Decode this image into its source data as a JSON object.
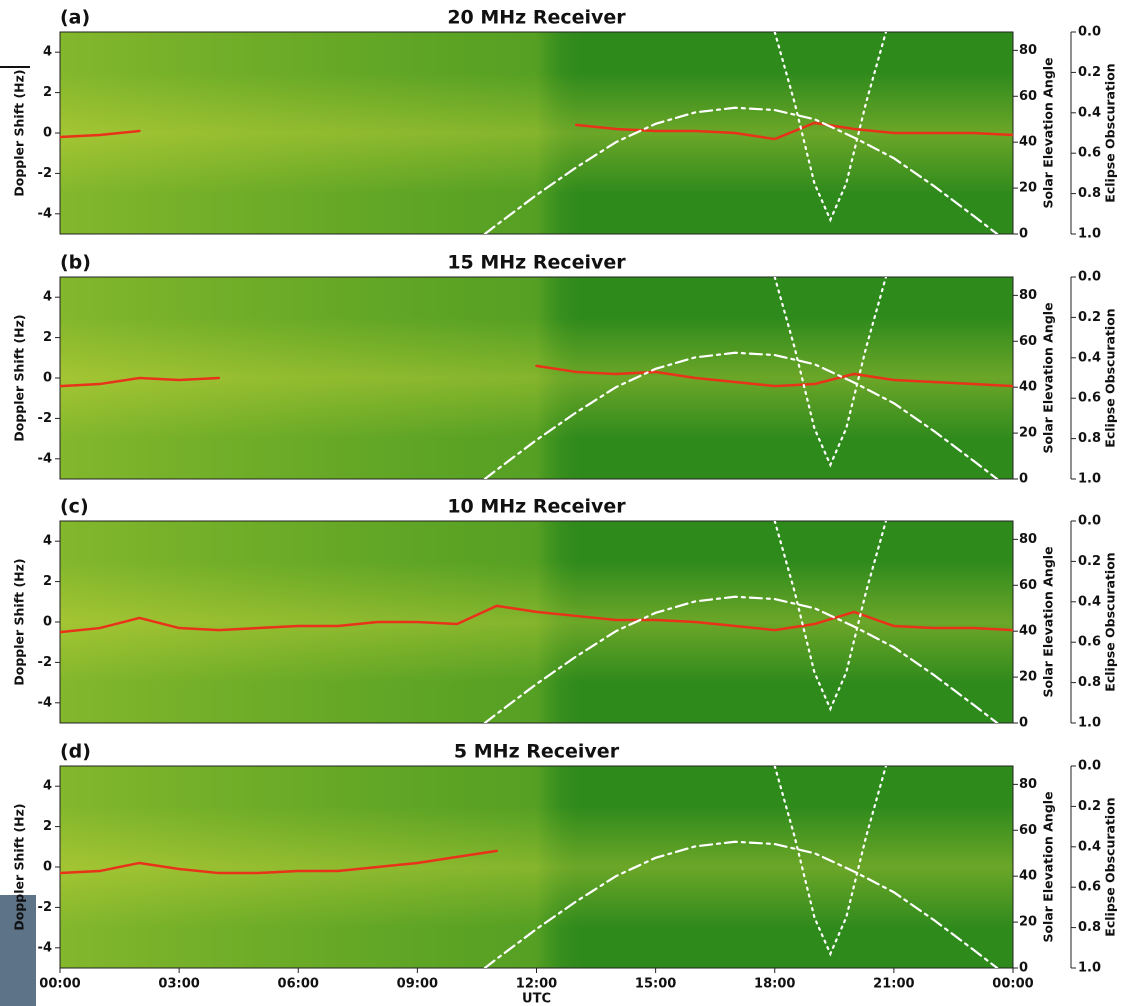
{
  "chart_data": [
    {
      "type": "line",
      "label": "(a)",
      "title": "20 MHz Receiver",
      "ylabel": "Doppler Shift (Hz)",
      "y2label": "Solar Elevation Angle",
      "y3label": "Eclipse Obscuration",
      "xlim": [
        0,
        24
      ],
      "ylim": [
        -5,
        5
      ],
      "yticks": [
        -4,
        -2,
        0,
        2,
        4
      ],
      "y2lim": [
        0,
        88
      ],
      "y2ticks": [
        0,
        20,
        40,
        60,
        80
      ],
      "y3lim": [
        0,
        1
      ],
      "y3_inverted": true,
      "y3ticks": [
        {
          "value": 0,
          "label": "0.0"
        },
        {
          "value": 0.2,
          "label": "0.2"
        },
        {
          "value": 0.4,
          "label": "0.4"
        },
        {
          "value": 0.6,
          "label": "0.6"
        },
        {
          "value": 0.8,
          "label": "0.8"
        },
        {
          "value": 1,
          "label": "1.0"
        }
      ],
      "series": [
        {
          "color": "#e8321a",
          "style": "solid",
          "x": [
            0,
            1,
            2,
            3,
            4,
            5,
            6,
            7,
            8,
            9,
            10,
            11,
            12,
            13,
            14,
            15,
            16,
            17,
            18,
            19,
            20,
            21,
            22,
            23,
            24
          ],
          "values": [
            -0.2,
            -0.1,
            0.1,
            null,
            null,
            null,
            null,
            null,
            null,
            null,
            null,
            null,
            null,
            0.4,
            0.2,
            0.1,
            0.1,
            0.0,
            -0.3,
            0.5,
            0.2,
            0.0,
            0.0,
            0.0,
            -0.1
          ]
        },
        {
          "axis": "y2",
          "color": "#ffffff",
          "style": "dashdot",
          "x": [
            10.7,
            11,
            12,
            13,
            14,
            15,
            16,
            17,
            18,
            19,
            20,
            21,
            22,
            23,
            23.6
          ],
          "values": [
            0,
            4,
            17,
            29,
            40,
            48,
            53,
            55,
            54,
            50,
            42,
            33,
            21,
            8,
            0
          ]
        },
        {
          "axis": "y3",
          "color": "#ffffff",
          "style": "dotted",
          "x": [
            18.0,
            18.5,
            19.0,
            19.4,
            19.8,
            20.3,
            20.8
          ],
          "values": [
            0,
            0.35,
            0.75,
            0.93,
            0.75,
            0.35,
            0
          ]
        }
      ]
    },
    {
      "type": "line",
      "label": "(b)",
      "title": "15 MHz Receiver",
      "ylabel": "Doppler Shift (Hz)",
      "y2label": "Solar Elevation Angle",
      "y3label": "Eclipse Obscuration",
      "xlim": [
        0,
        24
      ],
      "ylim": [
        -5,
        5
      ],
      "yticks": [
        -4,
        -2,
        0,
        2,
        4
      ],
      "y2lim": [
        0,
        88
      ],
      "y2ticks": [
        0,
        20,
        40,
        60,
        80
      ],
      "y3lim": [
        0,
        1
      ],
      "y3_inverted": true,
      "y3ticks": [
        {
          "value": 0,
          "label": "0.0"
        },
        {
          "value": 0.2,
          "label": "0.2"
        },
        {
          "value": 0.4,
          "label": "0.4"
        },
        {
          "value": 0.6,
          "label": "0.6"
        },
        {
          "value": 0.8,
          "label": "0.8"
        },
        {
          "value": 1,
          "label": "1.0"
        }
      ],
      "series": [
        {
          "color": "#e8321a",
          "style": "solid",
          "x": [
            0,
            1,
            2,
            3,
            4,
            5,
            6,
            7,
            8,
            9,
            10,
            11,
            12,
            13,
            14,
            15,
            16,
            17,
            18,
            19,
            20,
            21,
            22,
            23,
            24
          ],
          "values": [
            -0.4,
            -0.3,
            0.0,
            -0.1,
            0.0,
            null,
            null,
            null,
            null,
            null,
            null,
            null,
            0.6,
            0.3,
            0.2,
            0.3,
            0.0,
            -0.2,
            -0.4,
            -0.3,
            0.2,
            -0.1,
            -0.2,
            -0.3,
            -0.4
          ]
        },
        {
          "axis": "y2",
          "color": "#ffffff",
          "style": "dashdot",
          "x": [
            10.7,
            11,
            12,
            13,
            14,
            15,
            16,
            17,
            18,
            19,
            20,
            21,
            22,
            23,
            23.6
          ],
          "values": [
            0,
            4,
            17,
            29,
            40,
            48,
            53,
            55,
            54,
            50,
            42,
            33,
            21,
            8,
            0
          ]
        },
        {
          "axis": "y3",
          "color": "#ffffff",
          "style": "dotted",
          "x": [
            18.0,
            18.5,
            19.0,
            19.4,
            19.8,
            20.3,
            20.8
          ],
          "values": [
            0,
            0.35,
            0.75,
            0.93,
            0.75,
            0.35,
            0
          ]
        }
      ]
    },
    {
      "type": "line",
      "label": "(c)",
      "title": "10 MHz Receiver",
      "ylabel": "Doppler Shift (Hz)",
      "y2label": "Solar Elevation Angle",
      "y3label": "Eclipse Obscuration",
      "xlim": [
        0,
        24
      ],
      "ylim": [
        -5,
        5
      ],
      "yticks": [
        -4,
        -2,
        0,
        2,
        4
      ],
      "y2lim": [
        0,
        88
      ],
      "y2ticks": [
        0,
        20,
        40,
        60,
        80
      ],
      "y3lim": [
        0,
        1
      ],
      "y3_inverted": true,
      "y3ticks": [
        {
          "value": 0,
          "label": "0.0"
        },
        {
          "value": 0.2,
          "label": "0.2"
        },
        {
          "value": 0.4,
          "label": "0.4"
        },
        {
          "value": 0.6,
          "label": "0.6"
        },
        {
          "value": 0.8,
          "label": "0.8"
        },
        {
          "value": 1,
          "label": "1.0"
        }
      ],
      "series": [
        {
          "color": "#e8321a",
          "style": "solid",
          "x": [
            0,
            1,
            2,
            3,
            4,
            5,
            6,
            7,
            8,
            9,
            10,
            11,
            12,
            13,
            14,
            15,
            16,
            17,
            18,
            19,
            20,
            21,
            22,
            23,
            24
          ],
          "values": [
            -0.5,
            -0.3,
            0.2,
            -0.3,
            -0.4,
            -0.3,
            -0.2,
            -0.2,
            0.0,
            0.0,
            -0.1,
            0.8,
            0.5,
            0.3,
            0.1,
            0.1,
            0.0,
            -0.2,
            -0.4,
            -0.1,
            0.5,
            -0.2,
            -0.3,
            -0.3,
            -0.4
          ]
        },
        {
          "axis": "y2",
          "color": "#ffffff",
          "style": "dashdot",
          "x": [
            10.7,
            11,
            12,
            13,
            14,
            15,
            16,
            17,
            18,
            19,
            20,
            21,
            22,
            23,
            23.6
          ],
          "values": [
            0,
            4,
            17,
            29,
            40,
            48,
            53,
            55,
            54,
            50,
            42,
            33,
            21,
            8,
            0
          ]
        },
        {
          "axis": "y3",
          "color": "#ffffff",
          "style": "dotted",
          "x": [
            18.0,
            18.5,
            19.0,
            19.4,
            19.8,
            20.3,
            20.8
          ],
          "values": [
            0,
            0.35,
            0.75,
            0.93,
            0.75,
            0.35,
            0
          ]
        }
      ]
    },
    {
      "type": "line",
      "label": "(d)",
      "title": "5 MHz Receiver",
      "ylabel": "Doppler Shift (Hz)",
      "y2label": "Solar Elevation Angle",
      "y3label": "Eclipse Obscuration",
      "xlabel": "UTC",
      "xlim": [
        0,
        24
      ],
      "xticks": [
        {
          "value": 0,
          "label": "00:00"
        },
        {
          "value": 3,
          "label": "03:00"
        },
        {
          "value": 6,
          "label": "06:00"
        },
        {
          "value": 9,
          "label": "09:00"
        },
        {
          "value": 12,
          "label": "12:00"
        },
        {
          "value": 15,
          "label": "15:00"
        },
        {
          "value": 18,
          "label": "18:00"
        },
        {
          "value": 21,
          "label": "21:00"
        },
        {
          "value": 24,
          "label": "00:00"
        }
      ],
      "ylim": [
        -5,
        5
      ],
      "yticks": [
        -4,
        -2,
        0,
        2,
        4
      ],
      "y2lim": [
        0,
        88
      ],
      "y2ticks": [
        0,
        20,
        40,
        60,
        80
      ],
      "y3lim": [
        0,
        1
      ],
      "y3_inverted": true,
      "y3ticks": [
        {
          "value": 0,
          "label": "0.0"
        },
        {
          "value": 0.2,
          "label": "0.2"
        },
        {
          "value": 0.4,
          "label": "0.4"
        },
        {
          "value": 0.6,
          "label": "0.6"
        },
        {
          "value": 0.8,
          "label": "0.8"
        },
        {
          "value": 1,
          "label": "1.0"
        }
      ],
      "series": [
        {
          "color": "#e8321a",
          "style": "solid",
          "x": [
            0,
            1,
            2,
            3,
            4,
            5,
            6,
            7,
            8,
            9,
            10,
            11,
            12,
            13,
            14,
            15,
            16,
            17,
            18,
            19,
            20,
            21,
            22,
            23,
            24
          ],
          "values": [
            -0.3,
            -0.2,
            0.2,
            -0.1,
            -0.3,
            -0.3,
            -0.2,
            -0.2,
            0.0,
            0.2,
            0.5,
            0.8,
            null,
            null,
            null,
            null,
            null,
            null,
            null,
            null,
            null,
            null,
            null,
            null,
            null
          ]
        },
        {
          "axis": "y2",
          "color": "#ffffff",
          "style": "dashdot",
          "x": [
            10.7,
            11,
            12,
            13,
            14,
            15,
            16,
            17,
            18,
            19,
            20,
            21,
            22,
            23,
            23.6
          ],
          "values": [
            0,
            4,
            17,
            29,
            40,
            48,
            53,
            55,
            54,
            50,
            42,
            33,
            21,
            8,
            0
          ]
        },
        {
          "axis": "y3",
          "color": "#ffffff",
          "style": "dotted",
          "x": [
            18.0,
            18.5,
            19.0,
            19.4,
            19.8,
            20.3,
            20.8
          ],
          "values": [
            0,
            0.35,
            0.75,
            0.93,
            0.75,
            0.35,
            0
          ]
        }
      ]
    }
  ]
}
